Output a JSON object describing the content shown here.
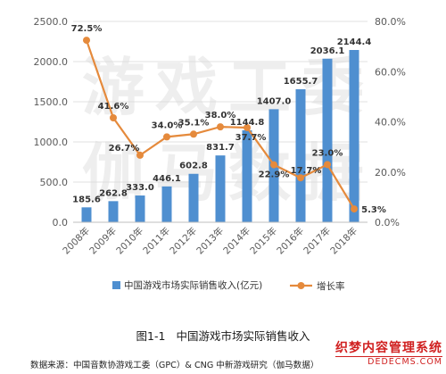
{
  "chart_data": {
    "type": "bar+line",
    "categories": [
      "2008年",
      "2009年",
      "2010年",
      "2011年",
      "2012年",
      "2013年",
      "2014年",
      "2015年",
      "2016年",
      "2017年",
      "2018年"
    ],
    "series": [
      {
        "name": "中国游戏市场实际销售收入(亿元)",
        "type": "bar",
        "axis": "left",
        "color": "#4f8fd0",
        "values": [
          185.6,
          262.8,
          333.0,
          446.1,
          602.8,
          831.7,
          1144.8,
          1407.0,
          1655.7,
          2036.1,
          2144.4
        ],
        "labels": [
          "185.6",
          "262.8",
          "333.0",
          "446.1",
          "602.8",
          "831.7",
          "1144.8",
          "1407.0",
          "1655.7",
          "2036.1",
          "2144.4"
        ]
      },
      {
        "name": "增长率",
        "type": "line",
        "axis": "right",
        "color": "#e58a3c",
        "values": [
          72.5,
          41.6,
          26.7,
          34.0,
          35.1,
          38.0,
          37.7,
          22.9,
          17.7,
          23.0,
          5.3
        ],
        "labels": [
          "72.5%",
          "41.6%",
          "26.7%",
          "34.0%",
          "35.1%",
          "38.0%",
          "37.7%",
          "22.9%",
          "17.7%",
          "23.0%",
          "5.3%"
        ]
      }
    ],
    "y_left": {
      "range": [
        0,
        2500
      ],
      "ticks": [
        "0.0",
        "500.0",
        "1000.0",
        "1500.0",
        "2000.0",
        "2500.0"
      ]
    },
    "y_right": {
      "range": [
        0,
        80
      ],
      "ticks": [
        "0.0%",
        "20.0%",
        "40.0%",
        "60.0%",
        "80.0%"
      ]
    },
    "grid": true,
    "legend_position": "bottom",
    "watermark": "游戏工委 伽马数据"
  },
  "caption": {
    "number": "图1-1",
    "title": "中国游戏市场实际销售收入"
  },
  "source_note": "数据来源：中国音数协游戏工委（GPC）& CNG 中新游戏研究（伽马数据）",
  "stamp": {
    "line1": "织梦内容管理系统",
    "line2": "DEDECMS.COM"
  }
}
